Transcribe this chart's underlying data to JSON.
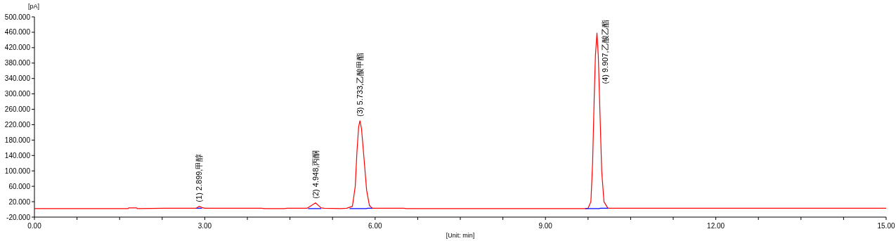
{
  "chart_data": {
    "type": "line",
    "xlabel": "[Unit: min]",
    "ylabel": "[pA]",
    "xlim": [
      0,
      15
    ],
    "ylim": [
      -20,
      500
    ],
    "xticks": [
      {
        "value": 0,
        "label": "0.00"
      },
      {
        "value": 0.75,
        "label": null
      },
      {
        "value": 1.5,
        "label": null
      },
      {
        "value": 2.25,
        "label": null
      },
      {
        "value": 3,
        "label": "3.00"
      },
      {
        "value": 3.75,
        "label": null
      },
      {
        "value": 4.5,
        "label": null
      },
      {
        "value": 5.25,
        "label": null
      },
      {
        "value": 6,
        "label": "6.00"
      },
      {
        "value": 6.75,
        "label": null
      },
      {
        "value": 7.5,
        "label": null
      },
      {
        "value": 8.25,
        "label": null
      },
      {
        "value": 9,
        "label": "9.00"
      },
      {
        "value": 9.75,
        "label": null
      },
      {
        "value": 10.5,
        "label": null
      },
      {
        "value": 11.25,
        "label": null
      },
      {
        "value": 12,
        "label": "12.00"
      },
      {
        "value": 12.75,
        "label": null
      },
      {
        "value": 13.5,
        "label": null
      },
      {
        "value": 14.25,
        "label": null
      },
      {
        "value": 15,
        "label": "15.00"
      }
    ],
    "yticks": [
      {
        "value": -20,
        "label": "-20.000"
      },
      {
        "value": 20,
        "label": "20.000"
      },
      {
        "value": 60,
        "label": "60.000"
      },
      {
        "value": 100,
        "label": "100.000"
      },
      {
        "value": 140,
        "label": "140.000"
      },
      {
        "value": 180,
        "label": "180.000"
      },
      {
        "value": 220,
        "label": "220.000"
      },
      {
        "value": 260,
        "label": "260.000"
      },
      {
        "value": 300,
        "label": "300.000"
      },
      {
        "value": 340,
        "label": "340.000"
      },
      {
        "value": 380,
        "label": "380.000"
      },
      {
        "value": 420,
        "label": "420.000"
      },
      {
        "value": 460,
        "label": "460.000"
      },
      {
        "value": 500,
        "label": "500.000"
      }
    ],
    "grid": false,
    "marker": "none",
    "line_style": "solid",
    "series": [
      {
        "color": "#ff0000",
        "x": [
          0,
          1.65,
          1.66,
          1.8,
          1.81,
          2.3,
          2.85,
          2.9,
          2.95,
          3.0,
          4.0,
          4.05,
          4.4,
          4.45,
          4.8,
          4.95,
          5.05,
          5.1,
          5.4,
          5.5,
          5.6,
          5.65,
          5.68,
          5.71,
          5.733,
          5.76,
          5.8,
          5.85,
          5.9,
          5.95,
          6.5,
          6.55,
          9.7,
          9.75,
          9.8,
          9.83,
          9.86,
          9.88,
          9.907,
          9.93,
          9.96,
          9.99,
          10.03,
          10.1,
          15
        ],
        "values": [
          2,
          2,
          4,
          4,
          2,
          3,
          3,
          8,
          5,
          3,
          3,
          2,
          2,
          3,
          3,
          17,
          4,
          3,
          2,
          3,
          8,
          60,
          150,
          215,
          230,
          210,
          140,
          50,
          10,
          3,
          3,
          2,
          2,
          3,
          20,
          120,
          300,
          400,
          458,
          400,
          250,
          100,
          20,
          3,
          3
        ]
      },
      {
        "color": "#0000ff",
        "x": [
          2.85,
          2.95,
          2.96,
          4.82,
          5.05,
          5.06,
          5.55,
          5.85,
          5.86,
          5.95,
          5.96,
          9.7,
          9.95,
          9.96,
          10.1
        ],
        "values": [
          3,
          3,
          null,
          2,
          2,
          null,
          2,
          2,
          3,
          3,
          null,
          2,
          2,
          3,
          3
        ]
      }
    ],
    "annotations": [
      {
        "text": "(1) 2.899,甲醇",
        "x": 2.899,
        "y": 8
      },
      {
        "text": "(2) 4.948,丙酮",
        "x": 4.948,
        "y": 17
      },
      {
        "text": "(3) 5.733,乙酸甲酯",
        "x": 5.733,
        "y": 230
      },
      {
        "text": "(4) 9.907,乙酸乙酯",
        "x": 9.907,
        "y": 458
      }
    ]
  }
}
